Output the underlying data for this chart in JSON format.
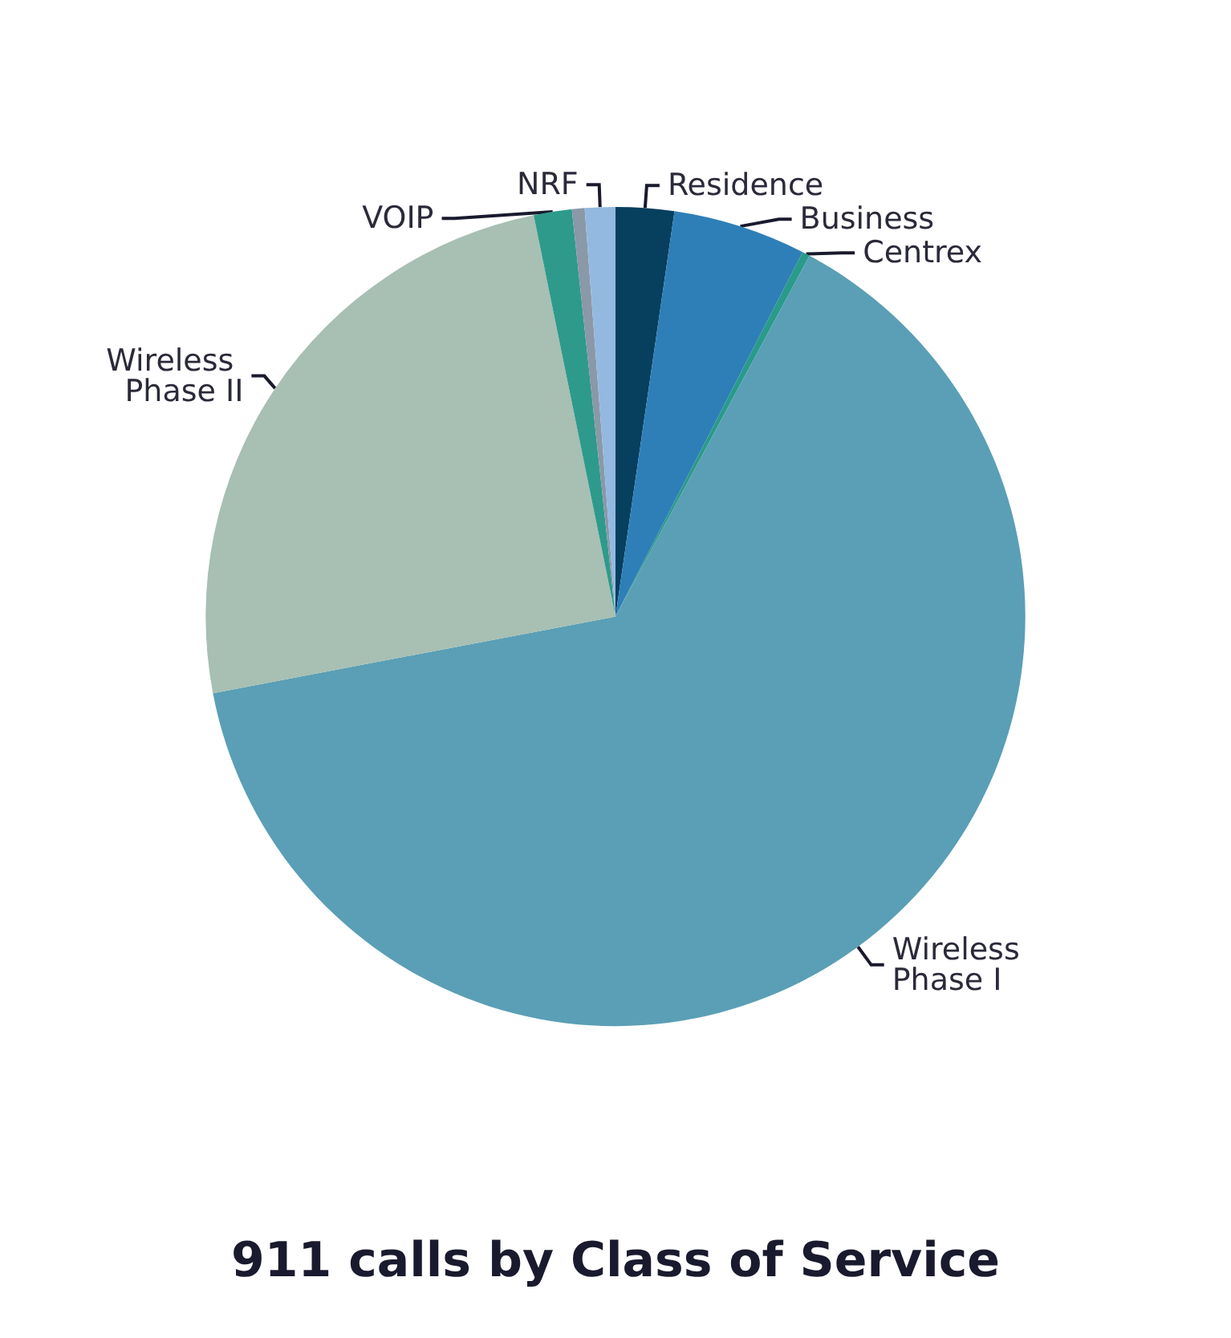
{
  "chart_data": {
    "type": "pie",
    "title": "911 calls by Class of Service",
    "categories": [
      "Residence",
      "Business",
      "Centrex",
      "Wireless Phase I",
      "Wireless Phase II",
      "VOIP",
      null,
      "NRF"
    ],
    "values": [
      2.3,
      5.25,
      0.3,
      64.15,
      24.8,
      1.5,
      0.5,
      1.2
    ],
    "colors": [
      "#073f5f",
      "#2e7fb8",
      "#2a9a8a",
      "#5a9fb5",
      "#a8bfb3",
      "#2e9a8c",
      "#8a98a8",
      "#93b9e0"
    ],
    "legend": false
  }
}
